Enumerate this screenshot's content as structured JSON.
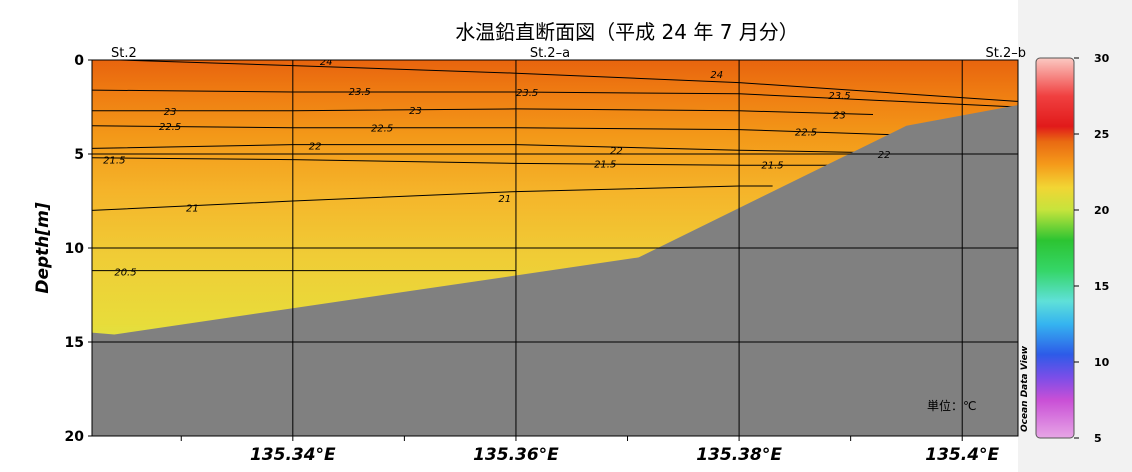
{
  "chart_data": {
    "type": "contour-section",
    "title": "水温鉛直断面図（平成 24 年 7 月分）",
    "ylabel": "Depth[m]",
    "unit_label": "単位：℃",
    "watermark": "Ocean Data View",
    "xlim": [
      135.322,
      135.405
    ],
    "ylim": [
      0,
      20
    ],
    "x_ticks": [
      {
        "value": 135.34,
        "label": "135.34°E"
      },
      {
        "value": 135.36,
        "label": "135.36°E"
      },
      {
        "value": 135.38,
        "label": "135.38°E"
      },
      {
        "value": 135.4,
        "label": "135.4°E"
      }
    ],
    "x_minor_ticks": [
      135.33,
      135.35,
      135.37,
      135.39
    ],
    "y_ticks": [
      {
        "value": 0,
        "label": "0"
      },
      {
        "value": 5,
        "label": "5"
      },
      {
        "value": 10,
        "label": "10"
      },
      {
        "value": 15,
        "label": "15"
      },
      {
        "value": 20,
        "label": "20"
      }
    ],
    "stations": [
      {
        "name": "St.2",
        "lon": 135.322
      },
      {
        "name": "St.2–a",
        "lon": 135.36
      },
      {
        "name": "St.2–b",
        "lon": 135.405
      }
    ],
    "colorbar": {
      "min": 5,
      "max": 30,
      "ticks": [
        5,
        10,
        15,
        20,
        25,
        30
      ],
      "stops": [
        {
          "v": 5,
          "color": "#e7a6e6"
        },
        {
          "v": 7.5,
          "color": "#c94fd6"
        },
        {
          "v": 9,
          "color": "#7a4ee8"
        },
        {
          "v": 10.5,
          "color": "#2d5be8"
        },
        {
          "v": 12.5,
          "color": "#35b4f0"
        },
        {
          "v": 14,
          "color": "#5fe0d8"
        },
        {
          "v": 16,
          "color": "#35d668"
        },
        {
          "v": 18,
          "color": "#2cc432"
        },
        {
          "v": 20,
          "color": "#c6e43c"
        },
        {
          "v": 21.5,
          "color": "#f2d534"
        },
        {
          "v": 23,
          "color": "#f59a1a"
        },
        {
          "v": 24.5,
          "color": "#e96a12"
        },
        {
          "v": 25.5,
          "color": "#e11a1a"
        },
        {
          "v": 27.5,
          "color": "#f04040"
        },
        {
          "v": 30,
          "color": "#fbc9c2"
        }
      ]
    },
    "seafloor": [
      [
        135.322,
        14.5
      ],
      [
        135.324,
        14.6
      ],
      [
        135.34,
        13.2
      ],
      [
        135.371,
        10.5
      ],
      [
        135.395,
        3.5
      ],
      [
        135.405,
        2.4
      ]
    ],
    "isotherms": [
      {
        "value": 24,
        "label": "24",
        "points": [
          [
            135.322,
            -0.05
          ],
          [
            135.34,
            0.3
          ],
          [
            135.36,
            0.7
          ],
          [
            135.38,
            1.2
          ],
          [
            135.405,
            2.2
          ]
        ],
        "labels": [
          [
            135.343,
            0.05
          ],
          [
            135.378,
            0.75
          ]
        ]
      },
      {
        "value": 23.5,
        "label": "23.5",
        "points": [
          [
            135.322,
            1.6
          ],
          [
            135.34,
            1.7
          ],
          [
            135.36,
            1.7
          ],
          [
            135.38,
            1.8
          ],
          [
            135.405,
            2.5
          ]
        ],
        "labels": [
          [
            135.346,
            1.65
          ],
          [
            135.361,
            1.7
          ],
          [
            135.389,
            1.85
          ]
        ]
      },
      {
        "value": 23,
        "label": "23",
        "points": [
          [
            135.322,
            2.7
          ],
          [
            135.34,
            2.7
          ],
          [
            135.36,
            2.6
          ],
          [
            135.38,
            2.7
          ],
          [
            135.392,
            2.9
          ]
        ],
        "labels": [
          [
            135.329,
            2.7
          ],
          [
            135.351,
            2.65
          ],
          [
            135.389,
            2.9
          ]
        ]
      },
      {
        "value": 22.5,
        "label": "22.5",
        "points": [
          [
            135.322,
            3.5
          ],
          [
            135.34,
            3.6
          ],
          [
            135.36,
            3.6
          ],
          [
            135.38,
            3.7
          ],
          [
            135.395,
            4.0
          ]
        ],
        "labels": [
          [
            135.329,
            3.5
          ],
          [
            135.348,
            3.6
          ],
          [
            135.386,
            3.8
          ]
        ]
      },
      {
        "value": 22,
        "label": "22",
        "points": [
          [
            135.322,
            4.7
          ],
          [
            135.34,
            4.5
          ],
          [
            135.36,
            4.5
          ],
          [
            135.38,
            4.8
          ],
          [
            135.398,
            5.0
          ]
        ],
        "labels": [
          [
            135.342,
            4.55
          ],
          [
            135.369,
            4.8
          ],
          [
            135.393,
            5.0
          ]
        ]
      },
      {
        "value": 21.5,
        "label": "21.5",
        "points": [
          [
            135.322,
            5.2
          ],
          [
            135.34,
            5.3
          ],
          [
            135.36,
            5.5
          ],
          [
            135.38,
            5.6
          ],
          [
            135.388,
            5.6
          ]
        ],
        "labels": [
          [
            135.324,
            5.3
          ],
          [
            135.368,
            5.5
          ],
          [
            135.383,
            5.55
          ]
        ]
      },
      {
        "value": 21,
        "label": "21",
        "points": [
          [
            135.322,
            8.0
          ],
          [
            135.34,
            7.5
          ],
          [
            135.36,
            7.0
          ],
          [
            135.38,
            6.7
          ],
          [
            135.383,
            6.7
          ]
        ],
        "labels": [
          [
            135.331,
            7.85
          ],
          [
            135.359,
            7.35
          ]
        ]
      },
      {
        "value": 20.5,
        "label": "20.5",
        "points": [
          [
            135.322,
            11.2
          ],
          [
            135.34,
            11.2
          ],
          [
            135.36,
            11.2
          ]
        ],
        "labels": [
          [
            135.325,
            11.25
          ]
        ]
      }
    ]
  }
}
